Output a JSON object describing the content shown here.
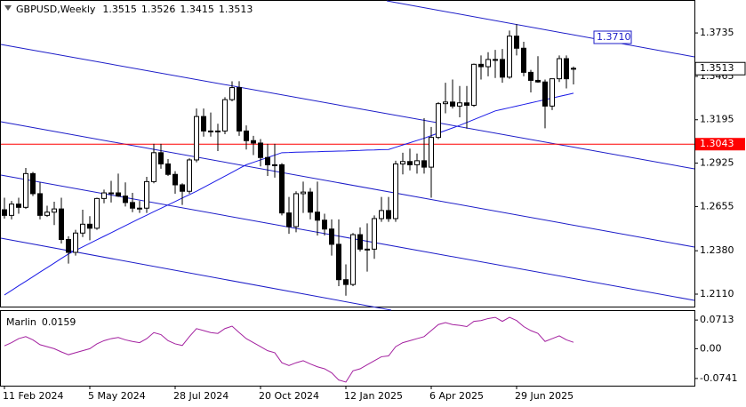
{
  "chart_data": [
    {
      "type": "candlestick",
      "title": "GBPUSD,Weekly",
      "categories": [
        "11 Feb 2024",
        null,
        null,
        null,
        null,
        null,
        null,
        null,
        null,
        null,
        null,
        null,
        "5 May 2024",
        null,
        null,
        null,
        null,
        null,
        null,
        null,
        null,
        null,
        null,
        null,
        "28 Jul 2024",
        null,
        null,
        null,
        null,
        null,
        null,
        null,
        null,
        null,
        null,
        null,
        "20 Oct 2024",
        null,
        null,
        null,
        null,
        null,
        null,
        null,
        null,
        null,
        null,
        null,
        "12 Jan 2025",
        null,
        null,
        null,
        null,
        null,
        null,
        null,
        null,
        null,
        null,
        null,
        "6 Apr 2025",
        null,
        null,
        null,
        null,
        null,
        null,
        null,
        null,
        null,
        null,
        null,
        "29 Jun 2025",
        null,
        null,
        null,
        null,
        null,
        null,
        null,
        null
      ],
      "open": [
        1.2635,
        1.26,
        1.267,
        1.265,
        1.286,
        1.2735,
        1.26,
        1.262,
        1.264,
        1.245,
        1.237,
        1.249,
        1.2545,
        1.252,
        1.2705,
        1.274,
        1.274,
        1.272,
        1.268,
        1.2645,
        1.2645,
        1.281,
        1.299,
        1.292,
        1.2855,
        1.279,
        1.275,
        1.2945,
        1.3215,
        1.3125,
        1.312,
        1.3125,
        1.332,
        1.3395,
        1.3125,
        1.3065,
        1.305,
        1.296,
        1.2915,
        1.2915,
        1.2615,
        1.253,
        1.2735,
        1.2745,
        1.262,
        1.257,
        1.2515,
        1.242,
        1.22,
        1.217,
        1.248,
        1.239,
        1.239,
        1.258,
        1.263,
        1.258,
        1.292,
        1.2935,
        1.2915,
        1.294,
        1.29,
        1.3085,
        1.3295,
        1.3305,
        1.328,
        1.33,
        1.3285,
        1.354,
        1.3525,
        1.357,
        1.357,
        1.346,
        1.3715,
        1.364,
        1.349,
        1.344,
        1.343,
        1.328,
        1.345,
        1.3575,
        1.3515
      ],
      "high": [
        1.271,
        1.269,
        1.271,
        1.2895,
        1.287,
        1.2805,
        1.266,
        1.2685,
        1.271,
        1.247,
        1.251,
        1.2635,
        1.2595,
        1.271,
        1.276,
        1.2815,
        1.286,
        1.2805,
        1.274,
        1.269,
        1.284,
        1.3045,
        1.3045,
        1.295,
        1.2875,
        1.28,
        1.2955,
        1.3265,
        1.3265,
        1.324,
        1.317,
        1.3335,
        1.3434,
        1.3435,
        1.316,
        1.3095,
        1.3075,
        1.3045,
        1.3045,
        1.2925,
        1.2715,
        1.275,
        1.281,
        1.277,
        1.281,
        1.261,
        1.2575,
        1.2575,
        1.2295,
        1.249,
        1.2525,
        1.255,
        1.26,
        1.2715,
        1.2715,
        1.294,
        1.299,
        1.3015,
        1.2985,
        1.3205,
        1.315,
        1.3305,
        1.3425,
        1.3445,
        1.3405,
        1.3405,
        1.3545,
        1.3595,
        1.3615,
        1.363,
        1.3635,
        1.375,
        1.379,
        1.368,
        1.3505,
        1.359,
        1.3445,
        1.345,
        1.3595,
        1.3595,
        1.3526
      ],
      "low": [
        1.258,
        1.2575,
        1.261,
        1.264,
        1.272,
        1.2575,
        1.259,
        1.254,
        1.2425,
        1.23,
        1.235,
        1.2465,
        1.2445,
        1.251,
        1.2675,
        1.268,
        1.2715,
        1.2655,
        1.262,
        1.2615,
        1.2615,
        1.28,
        1.289,
        1.2845,
        1.2735,
        1.2665,
        1.2735,
        1.293,
        1.309,
        1.309,
        1.3,
        1.3105,
        1.331,
        1.3095,
        1.301,
        1.2975,
        1.2905,
        1.2845,
        1.2835,
        1.26,
        1.2485,
        1.2495,
        1.2615,
        1.2575,
        1.2475,
        1.2475,
        1.235,
        1.216,
        1.21,
        1.216,
        1.2375,
        1.225,
        1.233,
        1.256,
        1.256,
        1.256,
        1.2855,
        1.288,
        1.286,
        1.286,
        1.271,
        1.3075,
        1.3235,
        1.3265,
        1.321,
        1.314,
        1.3275,
        1.3445,
        1.3465,
        1.3455,
        1.3425,
        1.345,
        1.3595,
        1.3465,
        1.3365,
        1.3425,
        1.3142,
        1.3255,
        1.343,
        1.339,
        1.3415
      ],
      "close": [
        1.26,
        1.267,
        1.265,
        1.286,
        1.2735,
        1.26,
        1.262,
        1.264,
        1.245,
        1.237,
        1.249,
        1.2545,
        1.252,
        1.2705,
        1.274,
        1.274,
        1.272,
        1.268,
        1.2645,
        1.2645,
        1.281,
        1.299,
        1.292,
        1.2855,
        1.279,
        1.275,
        1.2945,
        1.3215,
        1.3125,
        1.312,
        1.3125,
        1.332,
        1.3395,
        1.3125,
        1.3065,
        1.305,
        1.296,
        1.2915,
        1.2915,
        1.2615,
        1.253,
        1.2735,
        1.2745,
        1.262,
        1.257,
        1.2515,
        1.242,
        1.22,
        1.217,
        1.248,
        1.239,
        1.239,
        1.258,
        1.263,
        1.258,
        1.292,
        1.2935,
        1.2915,
        1.294,
        1.29,
        1.3085,
        1.3295,
        1.3305,
        1.328,
        1.33,
        1.3285,
        1.354,
        1.3525,
        1.357,
        1.357,
        1.346,
        1.3715,
        1.364,
        1.349,
        1.344,
        1.343,
        1.328,
        1.345,
        1.3575,
        1.345,
        1.3513
      ],
      "ma": {
        "color": "#1a1ae6",
        "values": [
          1.2105,
          1.2133,
          1.2162,
          1.219,
          1.2218,
          1.2247,
          1.2275,
          1.2303,
          1.2332,
          1.236,
          1.2382,
          1.2404,
          1.2426,
          1.2448,
          1.247,
          1.2492,
          1.2514,
          1.2536,
          1.2558,
          1.258,
          1.2601,
          1.2623,
          1.2644,
          1.2665,
          1.2686,
          1.2708,
          1.2729,
          1.275,
          1.2774,
          1.2797,
          1.2821,
          1.2844,
          1.2868,
          1.2892,
          1.2915,
          1.293,
          1.2945,
          1.296,
          1.2975,
          1.299,
          1.2991,
          1.2993,
          1.2994,
          1.2995,
          1.2996,
          1.2998,
          1.2999,
          1.3,
          1.3001,
          1.3003,
          1.3004,
          1.3006,
          1.3007,
          1.3009,
          1.301,
          1.3024,
          1.3038,
          1.3052,
          1.3066,
          1.308,
          1.3096,
          1.3112,
          1.3128,
          1.3144,
          1.316,
          1.3178,
          1.3196,
          1.3214,
          1.3232,
          1.325,
          1.326,
          1.327,
          1.328,
          1.329,
          1.33,
          1.331,
          1.332,
          1.333,
          1.334,
          1.335,
          1.336
        ]
      },
      "hline": {
        "value": 1.3043,
        "color": "#ff0000"
      },
      "price_tag": {
        "value": 1.371,
        "label": "1.3710"
      },
      "ylim": [
        1.2027,
        1.394
      ],
      "yticks": [
        1.3735,
        1.3465,
        1.3195,
        1.2925,
        1.2655,
        {
          "value": 1.238,
          "label": "1.2380"
        },
        {
          "value": 1.211,
          "label": "1.2110"
        }
      ]
    },
    {
      "type": "line",
      "title": "Marlin",
      "color": "#a3209f",
      "values": [
        0.007,
        0.015,
        0.025,
        0.03,
        0.022,
        0.01,
        0.005,
        0.0,
        -0.008,
        -0.015,
        -0.01,
        -0.005,
        0.0,
        0.012,
        0.02,
        0.025,
        0.028,
        0.022,
        0.018,
        0.015,
        0.025,
        0.04,
        0.035,
        0.02,
        0.012,
        0.008,
        0.03,
        0.05,
        0.045,
        0.04,
        0.038,
        0.05,
        0.056,
        0.04,
        0.025,
        0.015,
        0.005,
        -0.005,
        -0.01,
        -0.035,
        -0.042,
        -0.035,
        -0.03,
        -0.038,
        -0.045,
        -0.05,
        -0.06,
        -0.078,
        -0.083,
        -0.055,
        -0.05,
        -0.04,
        -0.03,
        -0.02,
        -0.018,
        0.005,
        0.015,
        0.02,
        0.025,
        0.03,
        0.045,
        0.06,
        0.065,
        0.06,
        0.058,
        0.055,
        0.068,
        0.07,
        0.075,
        0.078,
        0.068,
        0.078,
        0.07,
        0.055,
        0.045,
        0.038,
        0.018,
        0.025,
        0.032,
        0.022,
        0.0159
      ],
      "ylim": [
        -0.092,
        0.0959
      ],
      "yticks": [
        0.0713,
        {
          "value": 0,
          "label": "0.00"
        },
        -0.0741
      ]
    }
  ]
}
